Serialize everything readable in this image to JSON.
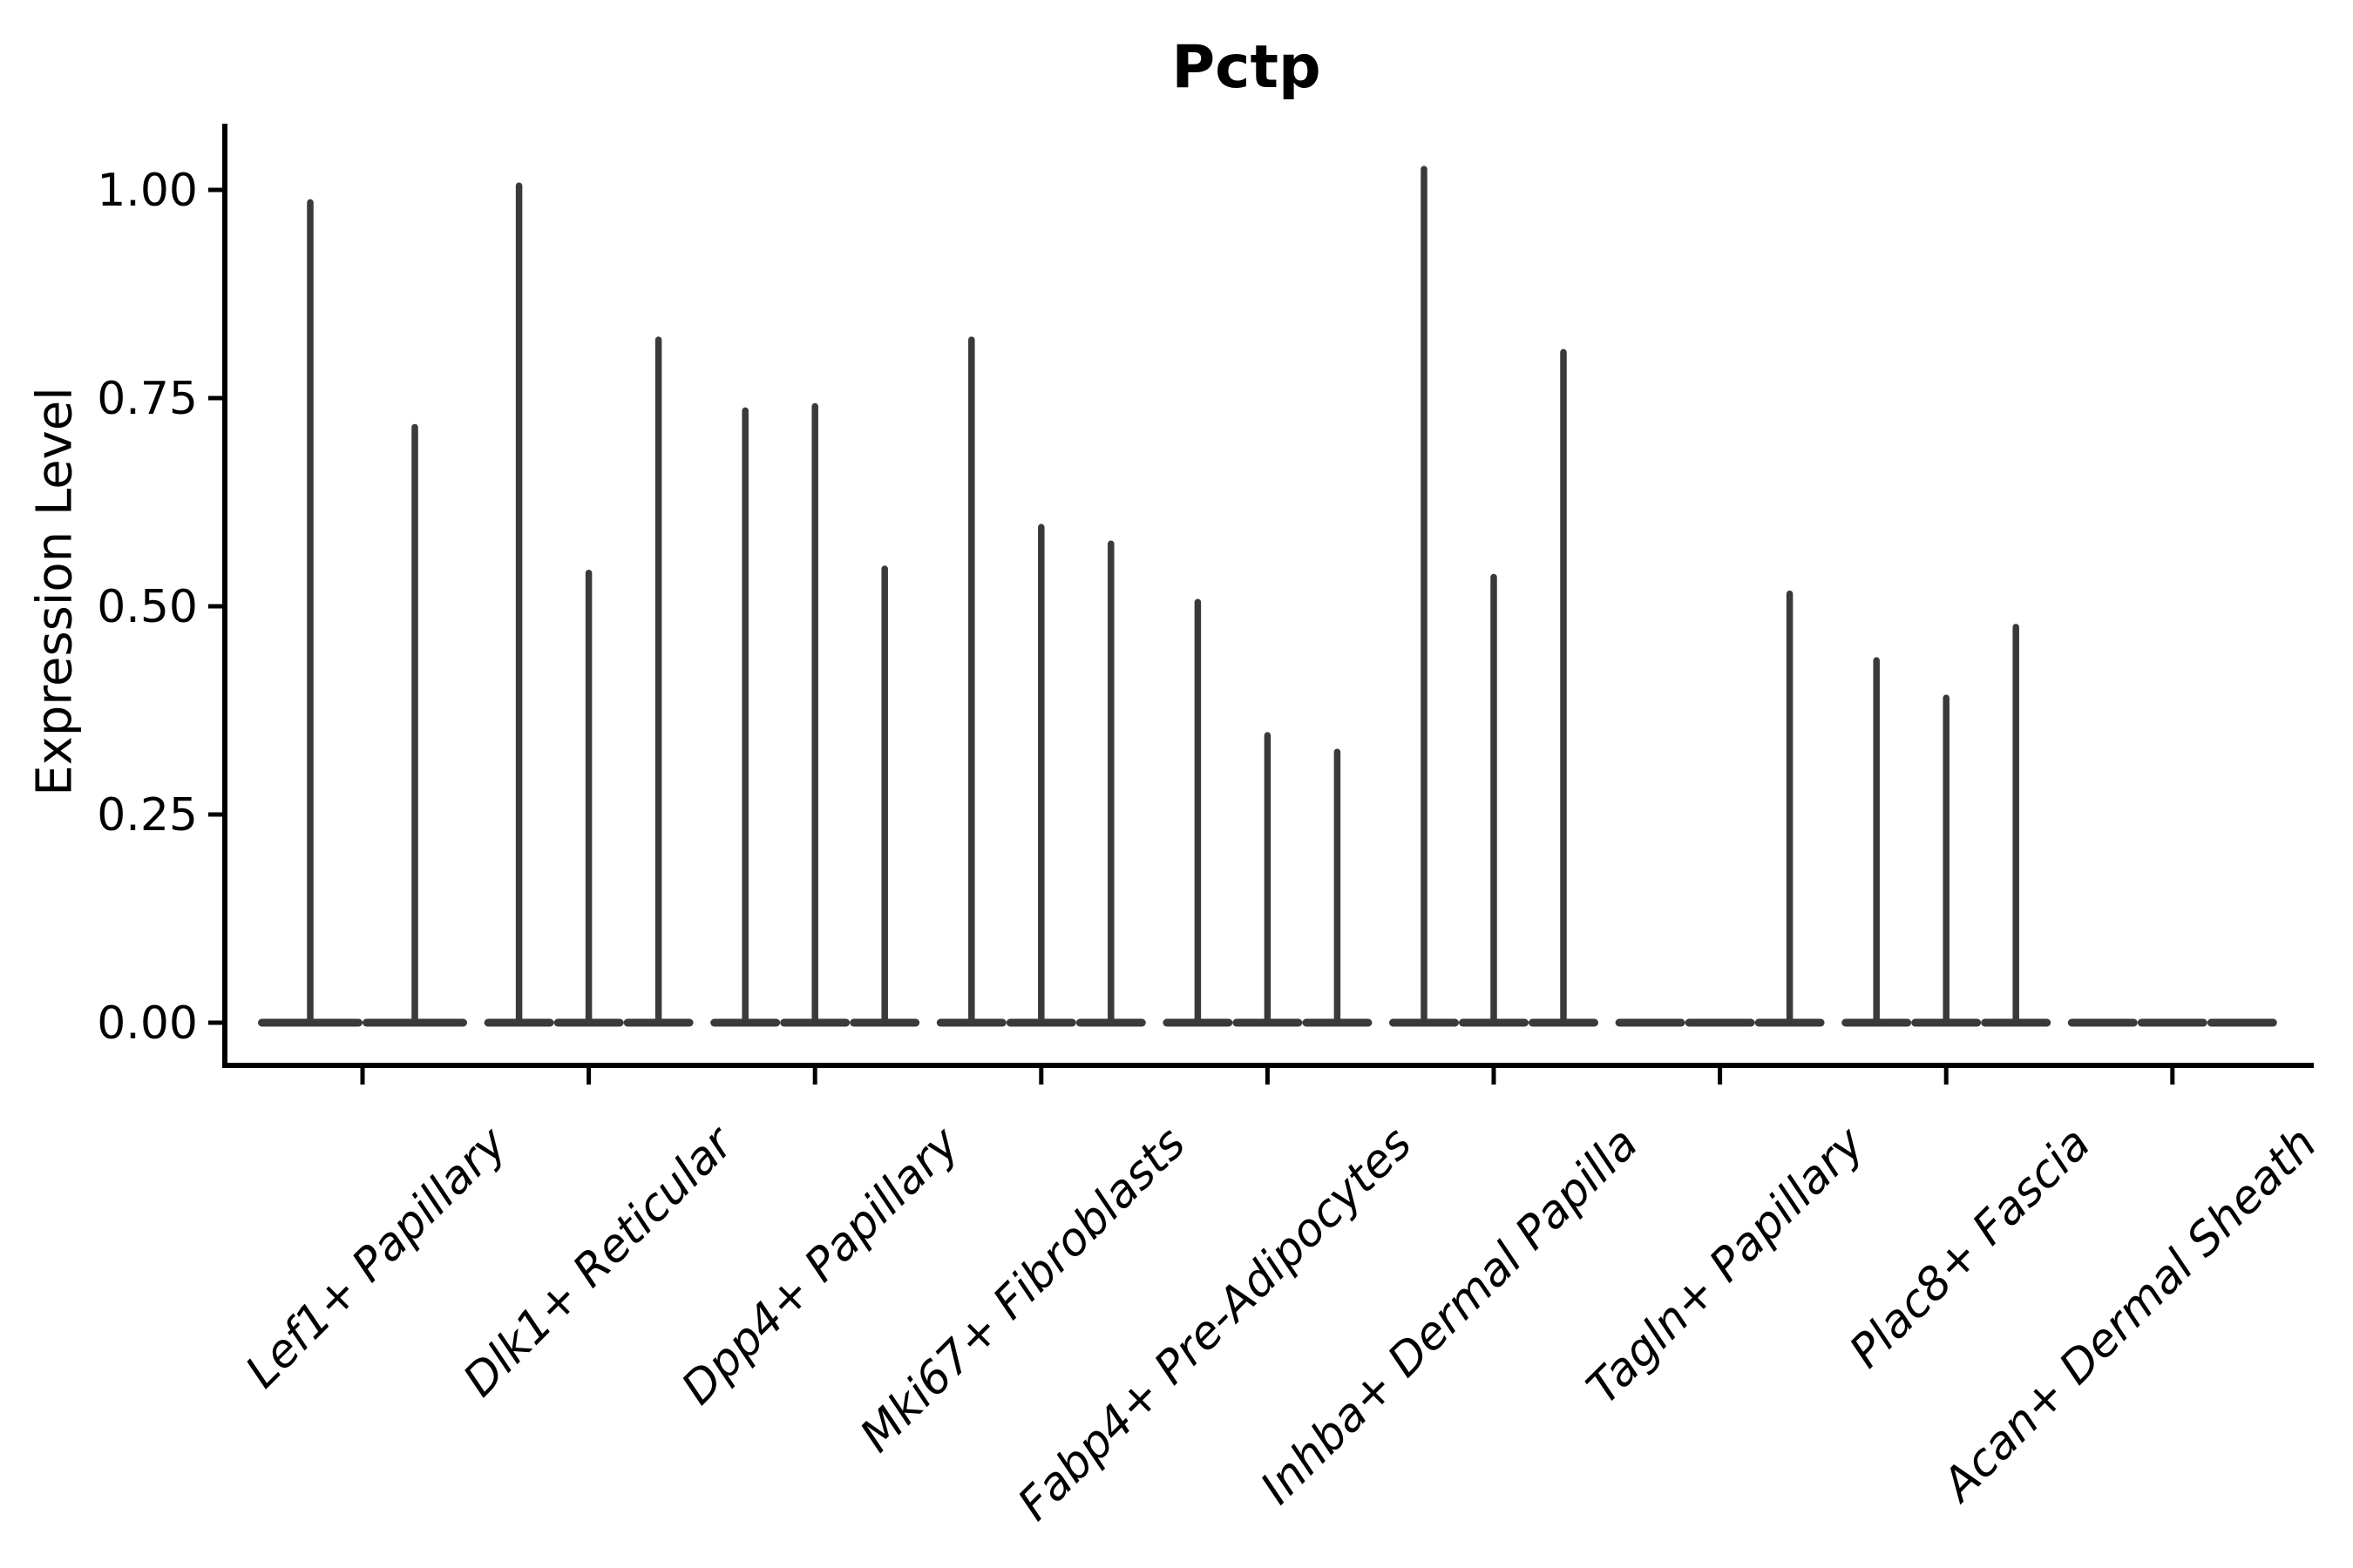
{
  "chart_data": {
    "type": "violin",
    "title": "Pctp",
    "xlabel": "",
    "ylabel": "Expression Level",
    "ylim": [
      -0.05,
      1.08
    ],
    "y_ticks": [
      0.0,
      0.25,
      0.5,
      0.75,
      1.0
    ],
    "y_tick_labels": [
      "0.00",
      "0.25",
      "0.50",
      "0.75",
      "1.00"
    ],
    "categories": [
      "Lef1+ Papillary",
      "Dlk1+ Reticular",
      "Dpp4+ Papillary",
      "Mki67+ Fibroblasts",
      "Fabp4+ Pre-Adipocytes",
      "Inhba+ Dermal Papilla",
      "Tagln+ Papillary",
      "Plac8+ Fascia",
      "Acan+ Dermal Sheath"
    ],
    "series": [
      {
        "category": "Lef1+ Papillary",
        "violin_maxima": [
          0.985,
          0.715
        ]
      },
      {
        "category": "Dlk1+ Reticular",
        "violin_maxima": [
          1.005,
          0.54,
          0.82
        ]
      },
      {
        "category": "Dpp4+ Papillary",
        "violin_maxima": [
          0.735,
          0.74,
          0.545
        ]
      },
      {
        "category": "Mki67+ Fibroblasts",
        "violin_maxima": [
          0.82,
          0.595,
          0.575
        ]
      },
      {
        "category": "Fabp4+ Pre-Adipocytes",
        "violin_maxima": [
          0.505,
          0.345,
          0.325
        ]
      },
      {
        "category": "Inhba+ Dermal Papilla",
        "violin_maxima": [
          1.025,
          0.535,
          0.805
        ]
      },
      {
        "category": "Tagln+ Papillary",
        "violin_maxima": [
          0.0,
          0.0,
          0.515
        ]
      },
      {
        "category": "Plac8+ Fascia",
        "violin_maxima": [
          0.435,
          0.39,
          0.475
        ]
      },
      {
        "category": "Acan+ Dermal Sheath",
        "violin_maxima": [
          0.0,
          0.0,
          0.0
        ]
      }
    ],
    "legend": "none",
    "grid": false,
    "colors": {
      "violin": "#3A3A3A",
      "axis": "#000000",
      "text": "#000000",
      "background": "#FFFFFF"
    }
  }
}
